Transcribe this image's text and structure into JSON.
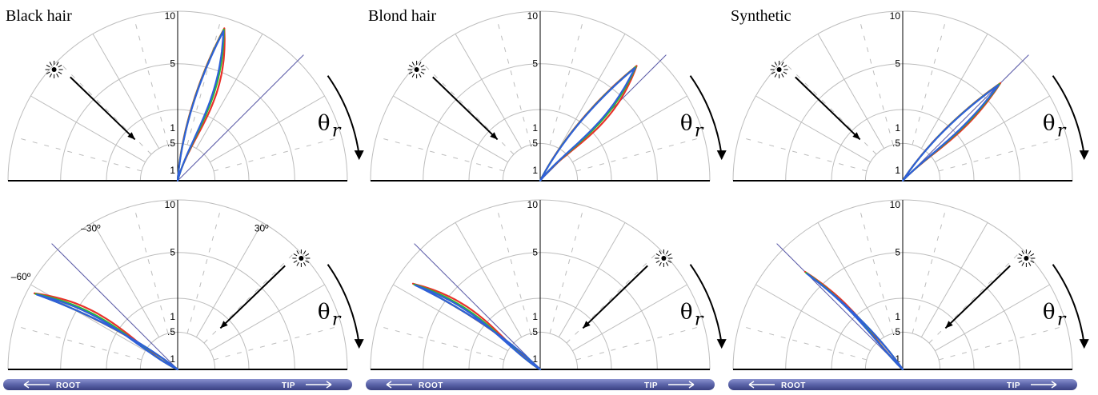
{
  "columns": [
    {
      "title": "Black hair",
      "top_peak": {
        "angle_deg": 17,
        "radius": 8
      },
      "bottom_peak": {
        "angle_deg": -62,
        "radius": 8.5
      }
    },
    {
      "title": "Blond hair",
      "top_peak": {
        "angle_deg": 40,
        "radius": 6.5
      },
      "bottom_peak": {
        "angle_deg": -56,
        "radius": 7
      }
    },
    {
      "title": "Synthetic",
      "top_peak": {
        "angle_deg": 45,
        "radius": 5
      },
      "bottom_peak": {
        "angle_deg": -45,
        "radius": 5
      }
    }
  ],
  "radial_ticks": [
    "10",
    "5",
    "1",
    ".5",
    "1"
  ],
  "angle_labels": {
    "minus30": "–30º",
    "plus30": "30º",
    "minus60": "–60º"
  },
  "theta_symbol": "θ",
  "theta_subscript": "r",
  "light_icon": "light-source-icon",
  "bar": {
    "root_label": "ROOT",
    "tip_label": "TIP",
    "color": "#5a63a8"
  },
  "series": [
    {
      "color": "#e8322a"
    },
    {
      "color": "#2bbf2b"
    },
    {
      "color": "#2f5fd8"
    }
  ],
  "grid_color": "#bdbdbd",
  "diagonal_color": "#5a5aa8"
}
